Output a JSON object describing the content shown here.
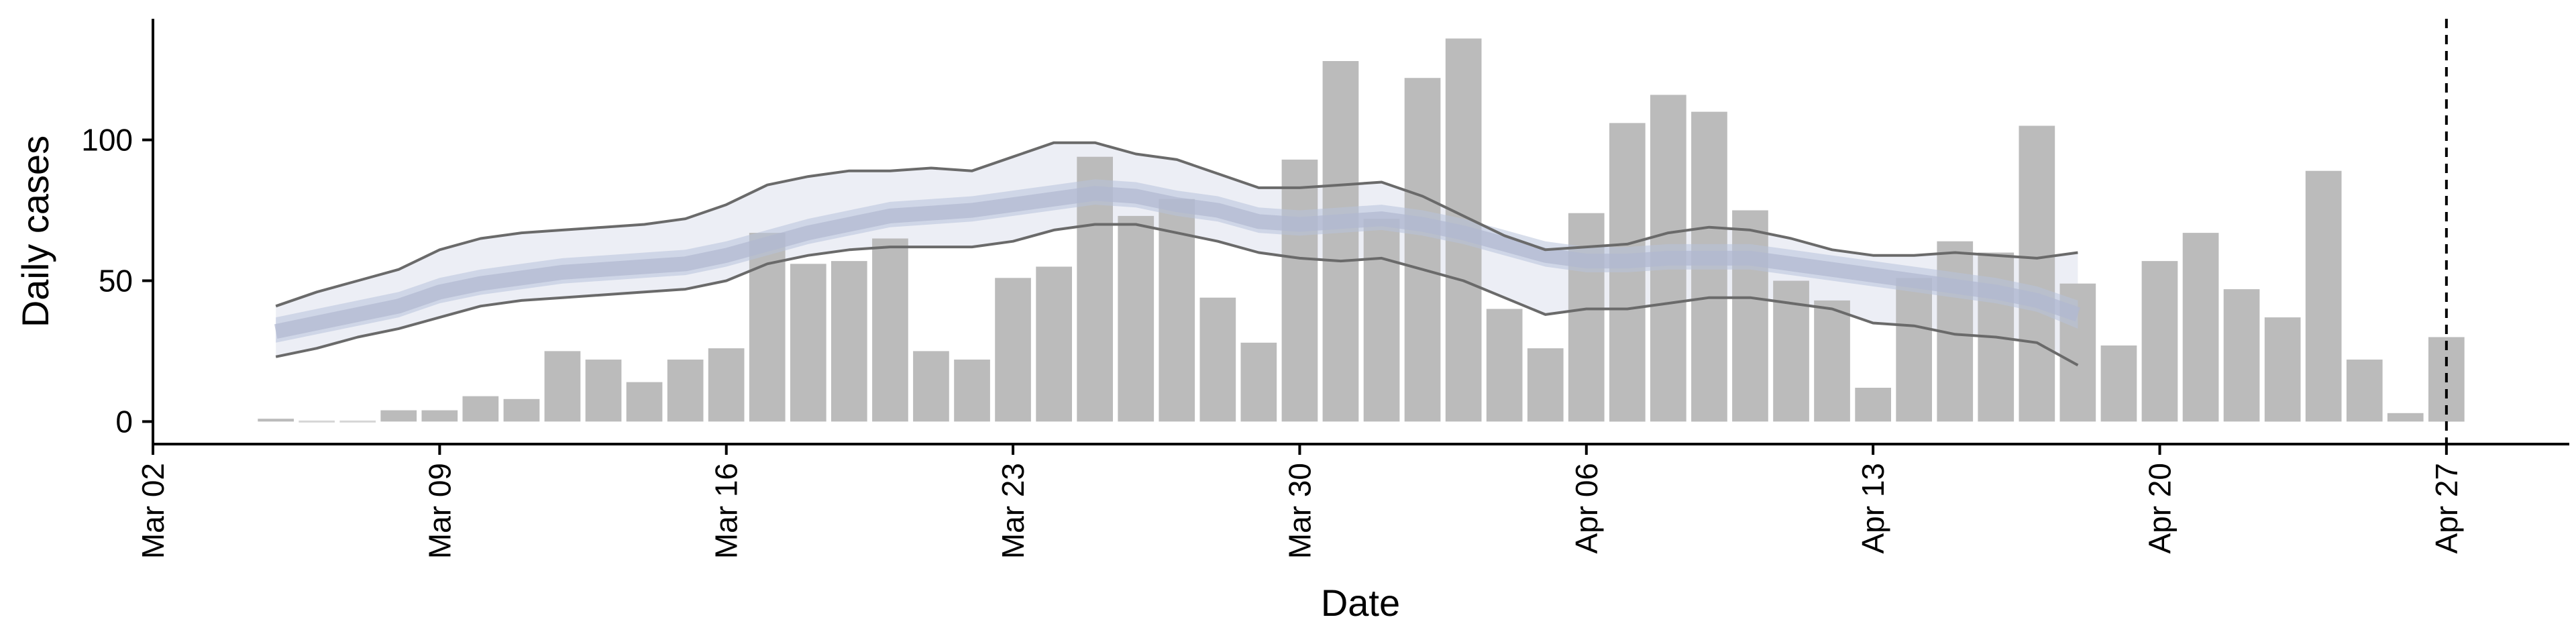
{
  "chart_data": {
    "type": "bar",
    "title": "",
    "xlabel": "Date",
    "ylabel": "Daily cases",
    "grid": false,
    "legend": "none",
    "ylim": [
      -8,
      143
    ],
    "xlim": [
      "2020-03-02",
      "2020-04-30"
    ],
    "x_ticks": [
      {
        "date": "2020-03-02",
        "label": "Mar 02"
      },
      {
        "date": "2020-03-09",
        "label": "Mar 09"
      },
      {
        "date": "2020-03-16",
        "label": "Mar 16"
      },
      {
        "date": "2020-03-23",
        "label": "Mar 23"
      },
      {
        "date": "2020-03-30",
        "label": "Mar 30"
      },
      {
        "date": "2020-04-06",
        "label": "Apr 06"
      },
      {
        "date": "2020-04-13",
        "label": "Apr 13"
      },
      {
        "date": "2020-04-20",
        "label": "Apr 20"
      },
      {
        "date": "2020-04-27",
        "label": "Apr 27"
      }
    ],
    "y_ticks": [
      {
        "value": 0,
        "label": "0"
      },
      {
        "value": 50,
        "label": "50"
      },
      {
        "value": 100,
        "label": "100"
      }
    ],
    "bars": {
      "color": "#bbbbbb",
      "dates": [
        "2020-03-05",
        "2020-03-06",
        "2020-03-07",
        "2020-03-08",
        "2020-03-09",
        "2020-03-10",
        "2020-03-11",
        "2020-03-12",
        "2020-03-13",
        "2020-03-14",
        "2020-03-15",
        "2020-03-16",
        "2020-03-17",
        "2020-03-18",
        "2020-03-19",
        "2020-03-20",
        "2020-03-21",
        "2020-03-22",
        "2020-03-23",
        "2020-03-24",
        "2020-03-25",
        "2020-03-26",
        "2020-03-27",
        "2020-03-28",
        "2020-03-29",
        "2020-03-30",
        "2020-03-31",
        "2020-04-01",
        "2020-04-02",
        "2020-04-03",
        "2020-04-04",
        "2020-04-05",
        "2020-04-06",
        "2020-04-07",
        "2020-04-08",
        "2020-04-09",
        "2020-04-10",
        "2020-04-11",
        "2020-04-12",
        "2020-04-13",
        "2020-04-14",
        "2020-04-15",
        "2020-04-16",
        "2020-04-17",
        "2020-04-18",
        "2020-04-19",
        "2020-04-20",
        "2020-04-21",
        "2020-04-22",
        "2020-04-23",
        "2020-04-24",
        "2020-04-25",
        "2020-04-26",
        "2020-04-27"
      ],
      "values": [
        1,
        0,
        0,
        4,
        4,
        9,
        8,
        25,
        22,
        14,
        22,
        26,
        67,
        56,
        57,
        65,
        25,
        22,
        51,
        55,
        94,
        73,
        79,
        44,
        28,
        93,
        128,
        72,
        122,
        136,
        40,
        26,
        74,
        106,
        116,
        110,
        75,
        50,
        43,
        12,
        51,
        64,
        60,
        105,
        49,
        27,
        57,
        67,
        47,
        37,
        89,
        22,
        3,
        30
      ]
    },
    "median": {
      "color": "#b0b8d0",
      "dates": [
        "2020-03-05",
        "2020-03-06",
        "2020-03-07",
        "2020-03-08",
        "2020-03-09",
        "2020-03-10",
        "2020-03-11",
        "2020-03-12",
        "2020-03-13",
        "2020-03-14",
        "2020-03-15",
        "2020-03-16",
        "2020-03-17",
        "2020-03-18",
        "2020-03-19",
        "2020-03-20",
        "2020-03-21",
        "2020-03-22",
        "2020-03-23",
        "2020-03-24",
        "2020-03-25",
        "2020-03-26",
        "2020-03-27",
        "2020-03-28",
        "2020-03-29",
        "2020-03-30",
        "2020-03-31",
        "2020-04-01",
        "2020-04-02",
        "2020-04-03",
        "2020-04-04",
        "2020-04-05",
        "2020-04-06",
        "2020-04-07",
        "2020-04-08",
        "2020-04-09",
        "2020-04-10",
        "2020-04-11",
        "2020-04-12",
        "2020-04-13",
        "2020-04-14",
        "2020-04-15",
        "2020-04-16",
        "2020-04-17",
        "2020-04-18"
      ],
      "values": [
        32,
        35,
        38,
        41,
        46,
        49,
        51,
        53,
        54,
        55,
        56,
        59,
        63,
        67,
        70,
        73,
        74,
        75,
        77,
        79,
        81,
        80,
        77,
        75,
        71,
        70,
        71,
        72,
        70,
        67,
        63,
        59,
        57,
        57,
        58,
        58,
        58,
        56,
        54,
        52,
        50,
        48,
        46,
        43,
        38
      ]
    },
    "inner_band": {
      "color": "#b8c2da",
      "lower": [
        28,
        31,
        34,
        37,
        42,
        45,
        47,
        49,
        50,
        51,
        52,
        55,
        59,
        63,
        66,
        69,
        70,
        71,
        73,
        75,
        77,
        76,
        73,
        71,
        67,
        66,
        67,
        68,
        66,
        63,
        59,
        55,
        53,
        53,
        54,
        54,
        54,
        52,
        50,
        48,
        46,
        44,
        42,
        39,
        33
      ],
      "upper": [
        37,
        40,
        43,
        46,
        51,
        54,
        56,
        58,
        59,
        60,
        61,
        64,
        68,
        72,
        75,
        78,
        79,
        80,
        82,
        84,
        86,
        85,
        82,
        80,
        76,
        75,
        76,
        77,
        75,
        72,
        68,
        64,
        62,
        62,
        63,
        63,
        63,
        61,
        59,
        57,
        55,
        53,
        51,
        48,
        43
      ]
    },
    "outer_band": {
      "color": "#dfe2ee",
      "lower": [
        23,
        26,
        30,
        33,
        37,
        41,
        43,
        44,
        45,
        46,
        47,
        50,
        56,
        59,
        61,
        62,
        62,
        62,
        64,
        68,
        70,
        70,
        67,
        64,
        60,
        58,
        57,
        58,
        54,
        50,
        44,
        38,
        40,
        40,
        42,
        44,
        44,
        42,
        40,
        35,
        34,
        31,
        30,
        28,
        20
      ],
      "upper": [
        41,
        46,
        50,
        54,
        61,
        65,
        67,
        68,
        69,
        70,
        72,
        77,
        84,
        87,
        89,
        89,
        90,
        89,
        94,
        99,
        99,
        95,
        93,
        88,
        83,
        83,
        84,
        85,
        80,
        73,
        66,
        61,
        62,
        63,
        67,
        69,
        68,
        65,
        61,
        59,
        59,
        60,
        59,
        58,
        60
      ]
    },
    "interval_lines": {
      "color": "#6a6a6a",
      "lower": [
        23,
        26,
        30,
        33,
        37,
        41,
        43,
        44,
        45,
        46,
        47,
        50,
        56,
        59,
        61,
        62,
        62,
        62,
        64,
        68,
        70,
        70,
        67,
        64,
        60,
        58,
        57,
        58,
        54,
        50,
        44,
        38,
        40,
        40,
        42,
        44,
        44,
        42,
        40,
        35,
        34,
        31,
        30,
        28,
        20
      ],
      "upper": [
        41,
        46,
        50,
        54,
        61,
        65,
        67,
        68,
        69,
        70,
        72,
        77,
        84,
        87,
        89,
        89,
        90,
        89,
        94,
        99,
        99,
        95,
        93,
        88,
        83,
        83,
        84,
        85,
        80,
        73,
        66,
        61,
        62,
        63,
        67,
        69,
        68,
        65,
        61,
        59,
        59,
        60,
        59,
        58,
        60
      ]
    },
    "vline": {
      "date": "2020-04-27",
      "style": "dashed",
      "color": "#000000"
    }
  }
}
